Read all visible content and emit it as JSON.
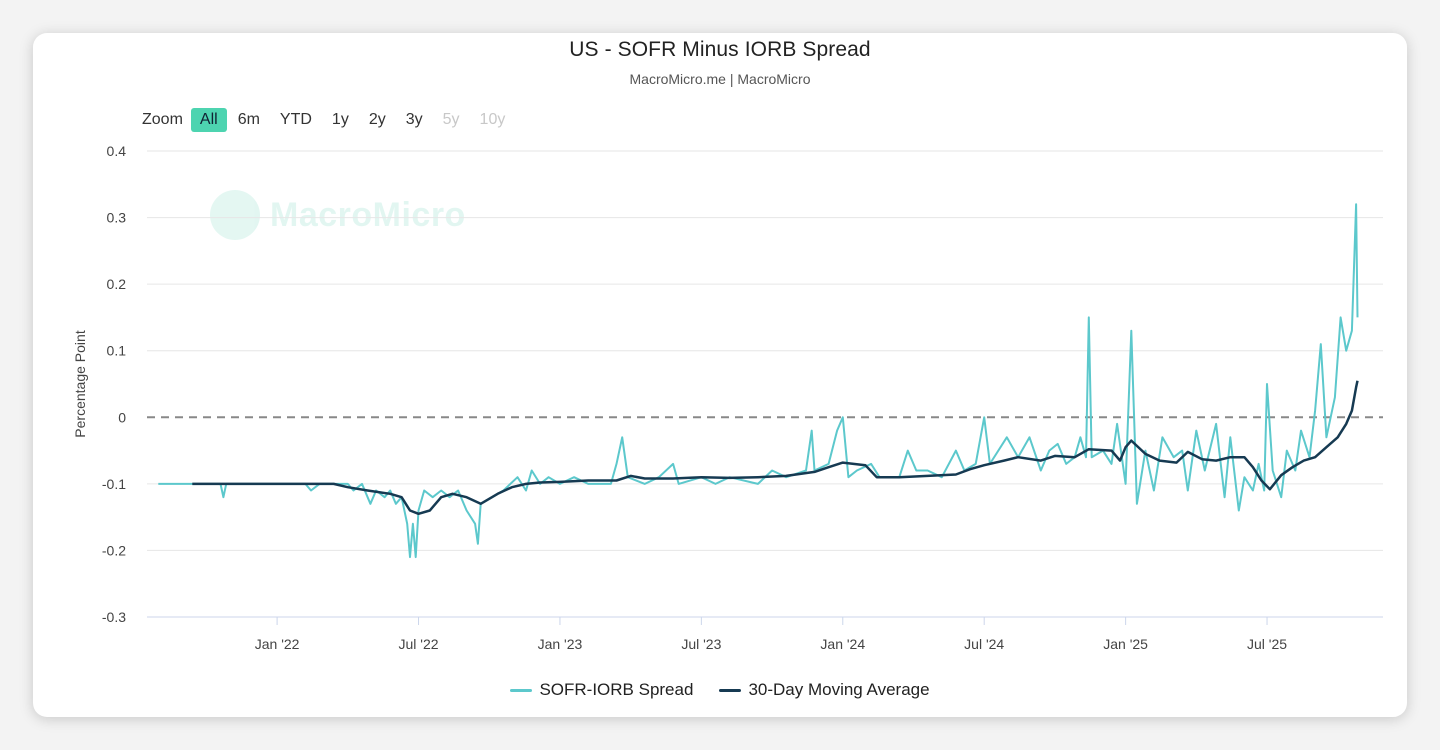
{
  "chart_data": {
    "type": "line",
    "title": "US - SOFR Minus IORB Spread",
    "subtitle": "MacroMicro.me | MacroMicro",
    "ylabel": "Percentage Point",
    "xlabel": "",
    "ylim": [
      -0.3,
      0.4
    ],
    "yticks": [
      0.4,
      0.3,
      0.2,
      0.1,
      0,
      -0.1,
      -0.2,
      -0.3
    ],
    "ytick_labels": [
      "0.4",
      "0.3",
      "0.2",
      "0.1",
      "0",
      "-0.1",
      "-0.2",
      "-0.3"
    ],
    "xlim": [
      2021.54,
      2025.91
    ],
    "xticks": [
      {
        "label": "Jan '22",
        "x": 2022.0
      },
      {
        "label": "Jul '22",
        "x": 2022.5
      },
      {
        "label": "Jan '23",
        "x": 2023.0
      },
      {
        "label": "Jul '23",
        "x": 2023.5
      },
      {
        "label": "Jan '24",
        "x": 2024.0
      },
      {
        "label": "Jul '24",
        "x": 2024.5
      },
      {
        "label": "Jan '25",
        "x": 2025.0
      },
      {
        "label": "Jul '25",
        "x": 2025.5
      }
    ],
    "reference_line": 0,
    "series": [
      {
        "name": "SOFR-IORB Spread",
        "color": "#5cc8cc",
        "points": [
          [
            2021.58,
            -0.1
          ],
          [
            2021.7,
            -0.1
          ],
          [
            2021.8,
            -0.1
          ],
          [
            2021.81,
            -0.12
          ],
          [
            2021.82,
            -0.1
          ],
          [
            2021.95,
            -0.1
          ],
          [
            2022.05,
            -0.1
          ],
          [
            2022.1,
            -0.1
          ],
          [
            2022.12,
            -0.11
          ],
          [
            2022.15,
            -0.1
          ],
          [
            2022.2,
            -0.1
          ],
          [
            2022.25,
            -0.1
          ],
          [
            2022.27,
            -0.11
          ],
          [
            2022.3,
            -0.1
          ],
          [
            2022.33,
            -0.13
          ],
          [
            2022.35,
            -0.11
          ],
          [
            2022.38,
            -0.12
          ],
          [
            2022.4,
            -0.11
          ],
          [
            2022.42,
            -0.13
          ],
          [
            2022.44,
            -0.12
          ],
          [
            2022.46,
            -0.16
          ],
          [
            2022.47,
            -0.21
          ],
          [
            2022.48,
            -0.16
          ],
          [
            2022.49,
            -0.21
          ],
          [
            2022.5,
            -0.14
          ],
          [
            2022.52,
            -0.11
          ],
          [
            2022.55,
            -0.12
          ],
          [
            2022.58,
            -0.11
          ],
          [
            2022.61,
            -0.12
          ],
          [
            2022.64,
            -0.11
          ],
          [
            2022.67,
            -0.14
          ],
          [
            2022.7,
            -0.16
          ],
          [
            2022.71,
            -0.19
          ],
          [
            2022.72,
            -0.13
          ],
          [
            2022.76,
            -0.12
          ],
          [
            2022.8,
            -0.11
          ],
          [
            2022.85,
            -0.09
          ],
          [
            2022.88,
            -0.11
          ],
          [
            2022.9,
            -0.08
          ],
          [
            2022.93,
            -0.1
          ],
          [
            2022.96,
            -0.09
          ],
          [
            2023.0,
            -0.1
          ],
          [
            2023.05,
            -0.09
          ],
          [
            2023.1,
            -0.1
          ],
          [
            2023.18,
            -0.1
          ],
          [
            2023.2,
            -0.07
          ],
          [
            2023.22,
            -0.03
          ],
          [
            2023.24,
            -0.09
          ],
          [
            2023.3,
            -0.1
          ],
          [
            2023.35,
            -0.09
          ],
          [
            2023.4,
            -0.07
          ],
          [
            2023.42,
            -0.1
          ],
          [
            2023.5,
            -0.09
          ],
          [
            2023.55,
            -0.1
          ],
          [
            2023.6,
            -0.09
          ],
          [
            2023.7,
            -0.1
          ],
          [
            2023.75,
            -0.08
          ],
          [
            2023.8,
            -0.09
          ],
          [
            2023.87,
            -0.08
          ],
          [
            2023.89,
            -0.02
          ],
          [
            2023.9,
            -0.08
          ],
          [
            2023.95,
            -0.07
          ],
          [
            2023.98,
            -0.02
          ],
          [
            2024.0,
            0.0
          ],
          [
            2024.02,
            -0.09
          ],
          [
            2024.05,
            -0.08
          ],
          [
            2024.1,
            -0.07
          ],
          [
            2024.13,
            -0.09
          ],
          [
            2024.2,
            -0.09
          ],
          [
            2024.23,
            -0.05
          ],
          [
            2024.26,
            -0.08
          ],
          [
            2024.3,
            -0.08
          ],
          [
            2024.35,
            -0.09
          ],
          [
            2024.4,
            -0.05
          ],
          [
            2024.43,
            -0.08
          ],
          [
            2024.47,
            -0.07
          ],
          [
            2024.5,
            0.0
          ],
          [
            2024.52,
            -0.07
          ],
          [
            2024.58,
            -0.03
          ],
          [
            2024.62,
            -0.06
          ],
          [
            2024.66,
            -0.03
          ],
          [
            2024.7,
            -0.08
          ],
          [
            2024.73,
            -0.05
          ],
          [
            2024.76,
            -0.04
          ],
          [
            2024.79,
            -0.07
          ],
          [
            2024.82,
            -0.06
          ],
          [
            2024.84,
            -0.03
          ],
          [
            2024.86,
            -0.06
          ],
          [
            2024.87,
            0.15
          ],
          [
            2024.88,
            -0.06
          ],
          [
            2024.92,
            -0.05
          ],
          [
            2024.95,
            -0.07
          ],
          [
            2024.97,
            -0.01
          ],
          [
            2025.0,
            -0.1
          ],
          [
            2025.02,
            0.13
          ],
          [
            2025.04,
            -0.13
          ],
          [
            2025.07,
            -0.05
          ],
          [
            2025.1,
            -0.11
          ],
          [
            2025.13,
            -0.03
          ],
          [
            2025.17,
            -0.06
          ],
          [
            2025.2,
            -0.05
          ],
          [
            2025.22,
            -0.11
          ],
          [
            2025.25,
            -0.02
          ],
          [
            2025.28,
            -0.08
          ],
          [
            2025.32,
            -0.01
          ],
          [
            2025.35,
            -0.12
          ],
          [
            2025.37,
            -0.03
          ],
          [
            2025.4,
            -0.14
          ],
          [
            2025.42,
            -0.09
          ],
          [
            2025.45,
            -0.11
          ],
          [
            2025.47,
            -0.07
          ],
          [
            2025.49,
            -0.11
          ],
          [
            2025.5,
            0.05
          ],
          [
            2025.52,
            -0.08
          ],
          [
            2025.55,
            -0.12
          ],
          [
            2025.57,
            -0.05
          ],
          [
            2025.6,
            -0.08
          ],
          [
            2025.62,
            -0.02
          ],
          [
            2025.65,
            -0.06
          ],
          [
            2025.67,
            0.01
          ],
          [
            2025.69,
            0.11
          ],
          [
            2025.71,
            -0.03
          ],
          [
            2025.74,
            0.03
          ],
          [
            2025.76,
            0.15
          ],
          [
            2025.78,
            0.1
          ],
          [
            2025.8,
            0.13
          ],
          [
            2025.815,
            0.32
          ],
          [
            2025.82,
            0.15
          ]
        ]
      },
      {
        "name": "30-Day Moving Average",
        "color": "#163a52",
        "points": [
          [
            2021.7,
            -0.1
          ],
          [
            2021.8,
            -0.1
          ],
          [
            2022.0,
            -0.1
          ],
          [
            2022.15,
            -0.1
          ],
          [
            2022.2,
            -0.1
          ],
          [
            2022.25,
            -0.105
          ],
          [
            2022.32,
            -0.11
          ],
          [
            2022.4,
            -0.115
          ],
          [
            2022.44,
            -0.12
          ],
          [
            2022.47,
            -0.14
          ],
          [
            2022.5,
            -0.145
          ],
          [
            2022.54,
            -0.14
          ],
          [
            2022.58,
            -0.12
          ],
          [
            2022.62,
            -0.115
          ],
          [
            2022.67,
            -0.12
          ],
          [
            2022.72,
            -0.13
          ],
          [
            2022.78,
            -0.115
          ],
          [
            2022.83,
            -0.105
          ],
          [
            2022.88,
            -0.1
          ],
          [
            2022.93,
            -0.098
          ],
          [
            2023.0,
            -0.097
          ],
          [
            2023.1,
            -0.095
          ],
          [
            2023.2,
            -0.095
          ],
          [
            2023.25,
            -0.088
          ],
          [
            2023.3,
            -0.092
          ],
          [
            2023.4,
            -0.092
          ],
          [
            2023.5,
            -0.09
          ],
          [
            2023.6,
            -0.091
          ],
          [
            2023.7,
            -0.09
          ],
          [
            2023.8,
            -0.088
          ],
          [
            2023.9,
            -0.082
          ],
          [
            2023.95,
            -0.075
          ],
          [
            2024.0,
            -0.068
          ],
          [
            2024.08,
            -0.072
          ],
          [
            2024.12,
            -0.09
          ],
          [
            2024.2,
            -0.09
          ],
          [
            2024.3,
            -0.088
          ],
          [
            2024.4,
            -0.086
          ],
          [
            2024.45,
            -0.078
          ],
          [
            2024.5,
            -0.072
          ],
          [
            2024.57,
            -0.065
          ],
          [
            2024.62,
            -0.06
          ],
          [
            2024.7,
            -0.065
          ],
          [
            2024.75,
            -0.058
          ],
          [
            2024.82,
            -0.06
          ],
          [
            2024.87,
            -0.048
          ],
          [
            2024.95,
            -0.05
          ],
          [
            2024.98,
            -0.065
          ],
          [
            2025.0,
            -0.045
          ],
          [
            2025.02,
            -0.035
          ],
          [
            2025.07,
            -0.055
          ],
          [
            2025.12,
            -0.065
          ],
          [
            2025.18,
            -0.068
          ],
          [
            2025.22,
            -0.052
          ],
          [
            2025.27,
            -0.063
          ],
          [
            2025.32,
            -0.065
          ],
          [
            2025.37,
            -0.06
          ],
          [
            2025.42,
            -0.06
          ],
          [
            2025.45,
            -0.075
          ],
          [
            2025.48,
            -0.095
          ],
          [
            2025.51,
            -0.108
          ],
          [
            2025.55,
            -0.087
          ],
          [
            2025.59,
            -0.075
          ],
          [
            2025.63,
            -0.065
          ],
          [
            2025.67,
            -0.06
          ],
          [
            2025.71,
            -0.045
          ],
          [
            2025.75,
            -0.03
          ],
          [
            2025.78,
            -0.01
          ],
          [
            2025.8,
            0.01
          ],
          [
            2025.815,
            0.045
          ],
          [
            2025.82,
            0.055
          ]
        ]
      }
    ],
    "legend": [
      {
        "label": "SOFR-IORB Spread",
        "color": "#5cc8cc"
      },
      {
        "label": "30-Day Moving Average",
        "color": "#163a52"
      }
    ]
  },
  "zoom": {
    "label": "Zoom",
    "buttons": [
      {
        "label": "All",
        "state": "active"
      },
      {
        "label": "6m",
        "state": "enabled"
      },
      {
        "label": "YTD",
        "state": "enabled"
      },
      {
        "label": "1y",
        "state": "enabled"
      },
      {
        "label": "2y",
        "state": "enabled"
      },
      {
        "label": "3y",
        "state": "enabled"
      },
      {
        "label": "5y",
        "state": "disabled"
      },
      {
        "label": "10y",
        "state": "disabled"
      }
    ]
  },
  "watermark": {
    "text": "MacroMicro"
  }
}
